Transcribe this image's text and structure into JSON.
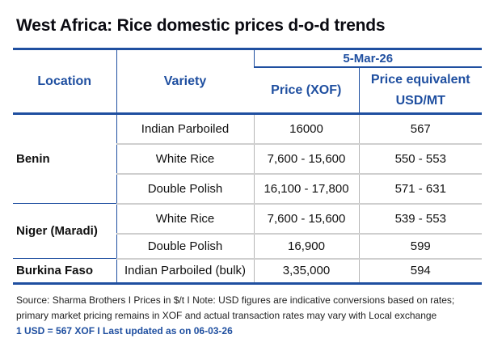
{
  "title": "West Africa: Rice domestic prices d-o-d trends",
  "table": {
    "headers": {
      "location": "Location",
      "variety": "Variety",
      "date": "5-Mar-26",
      "price_xof": "Price (XOF)",
      "price_usd_line1": "Price equivalent",
      "price_usd_line2": "USD/MT"
    },
    "rows": [
      {
        "location": "Benin",
        "variety": "Indian Parboiled",
        "xof": "16000",
        "usd": "567"
      },
      {
        "location": "",
        "variety": "White Rice",
        "xof": "7,600 - 15,600",
        "usd": "550 - 553"
      },
      {
        "location": "",
        "variety": "Double Polish",
        "xof": "16,100 - 17,800",
        "usd": "571 - 631"
      },
      {
        "location": "Niger (Maradi)",
        "variety": "White Rice",
        "xof": "7,600 - 15,600",
        "usd": "539 - 553"
      },
      {
        "location": "",
        "variety": "Double Polish",
        "xof": "16,900",
        "usd": "599"
      },
      {
        "location": "Burkina Faso",
        "variety": "Indian Parboiled (bulk)",
        "xof": "3,35,000",
        "usd": "594"
      }
    ]
  },
  "footer": {
    "line1": "Source: Sharma Brothers I Prices in $/t I Note: USD figures are indicative conversions based on",
    "line2": "rates; primary market pricing remains in XOF and actual transaction rates may vary with Local exchange",
    "line3": "1 USD = 567 XOF I Last updated as on 06-03-26"
  },
  "colors": {
    "accent": "#1f4fa0",
    "grid": "#cfcfcf"
  }
}
